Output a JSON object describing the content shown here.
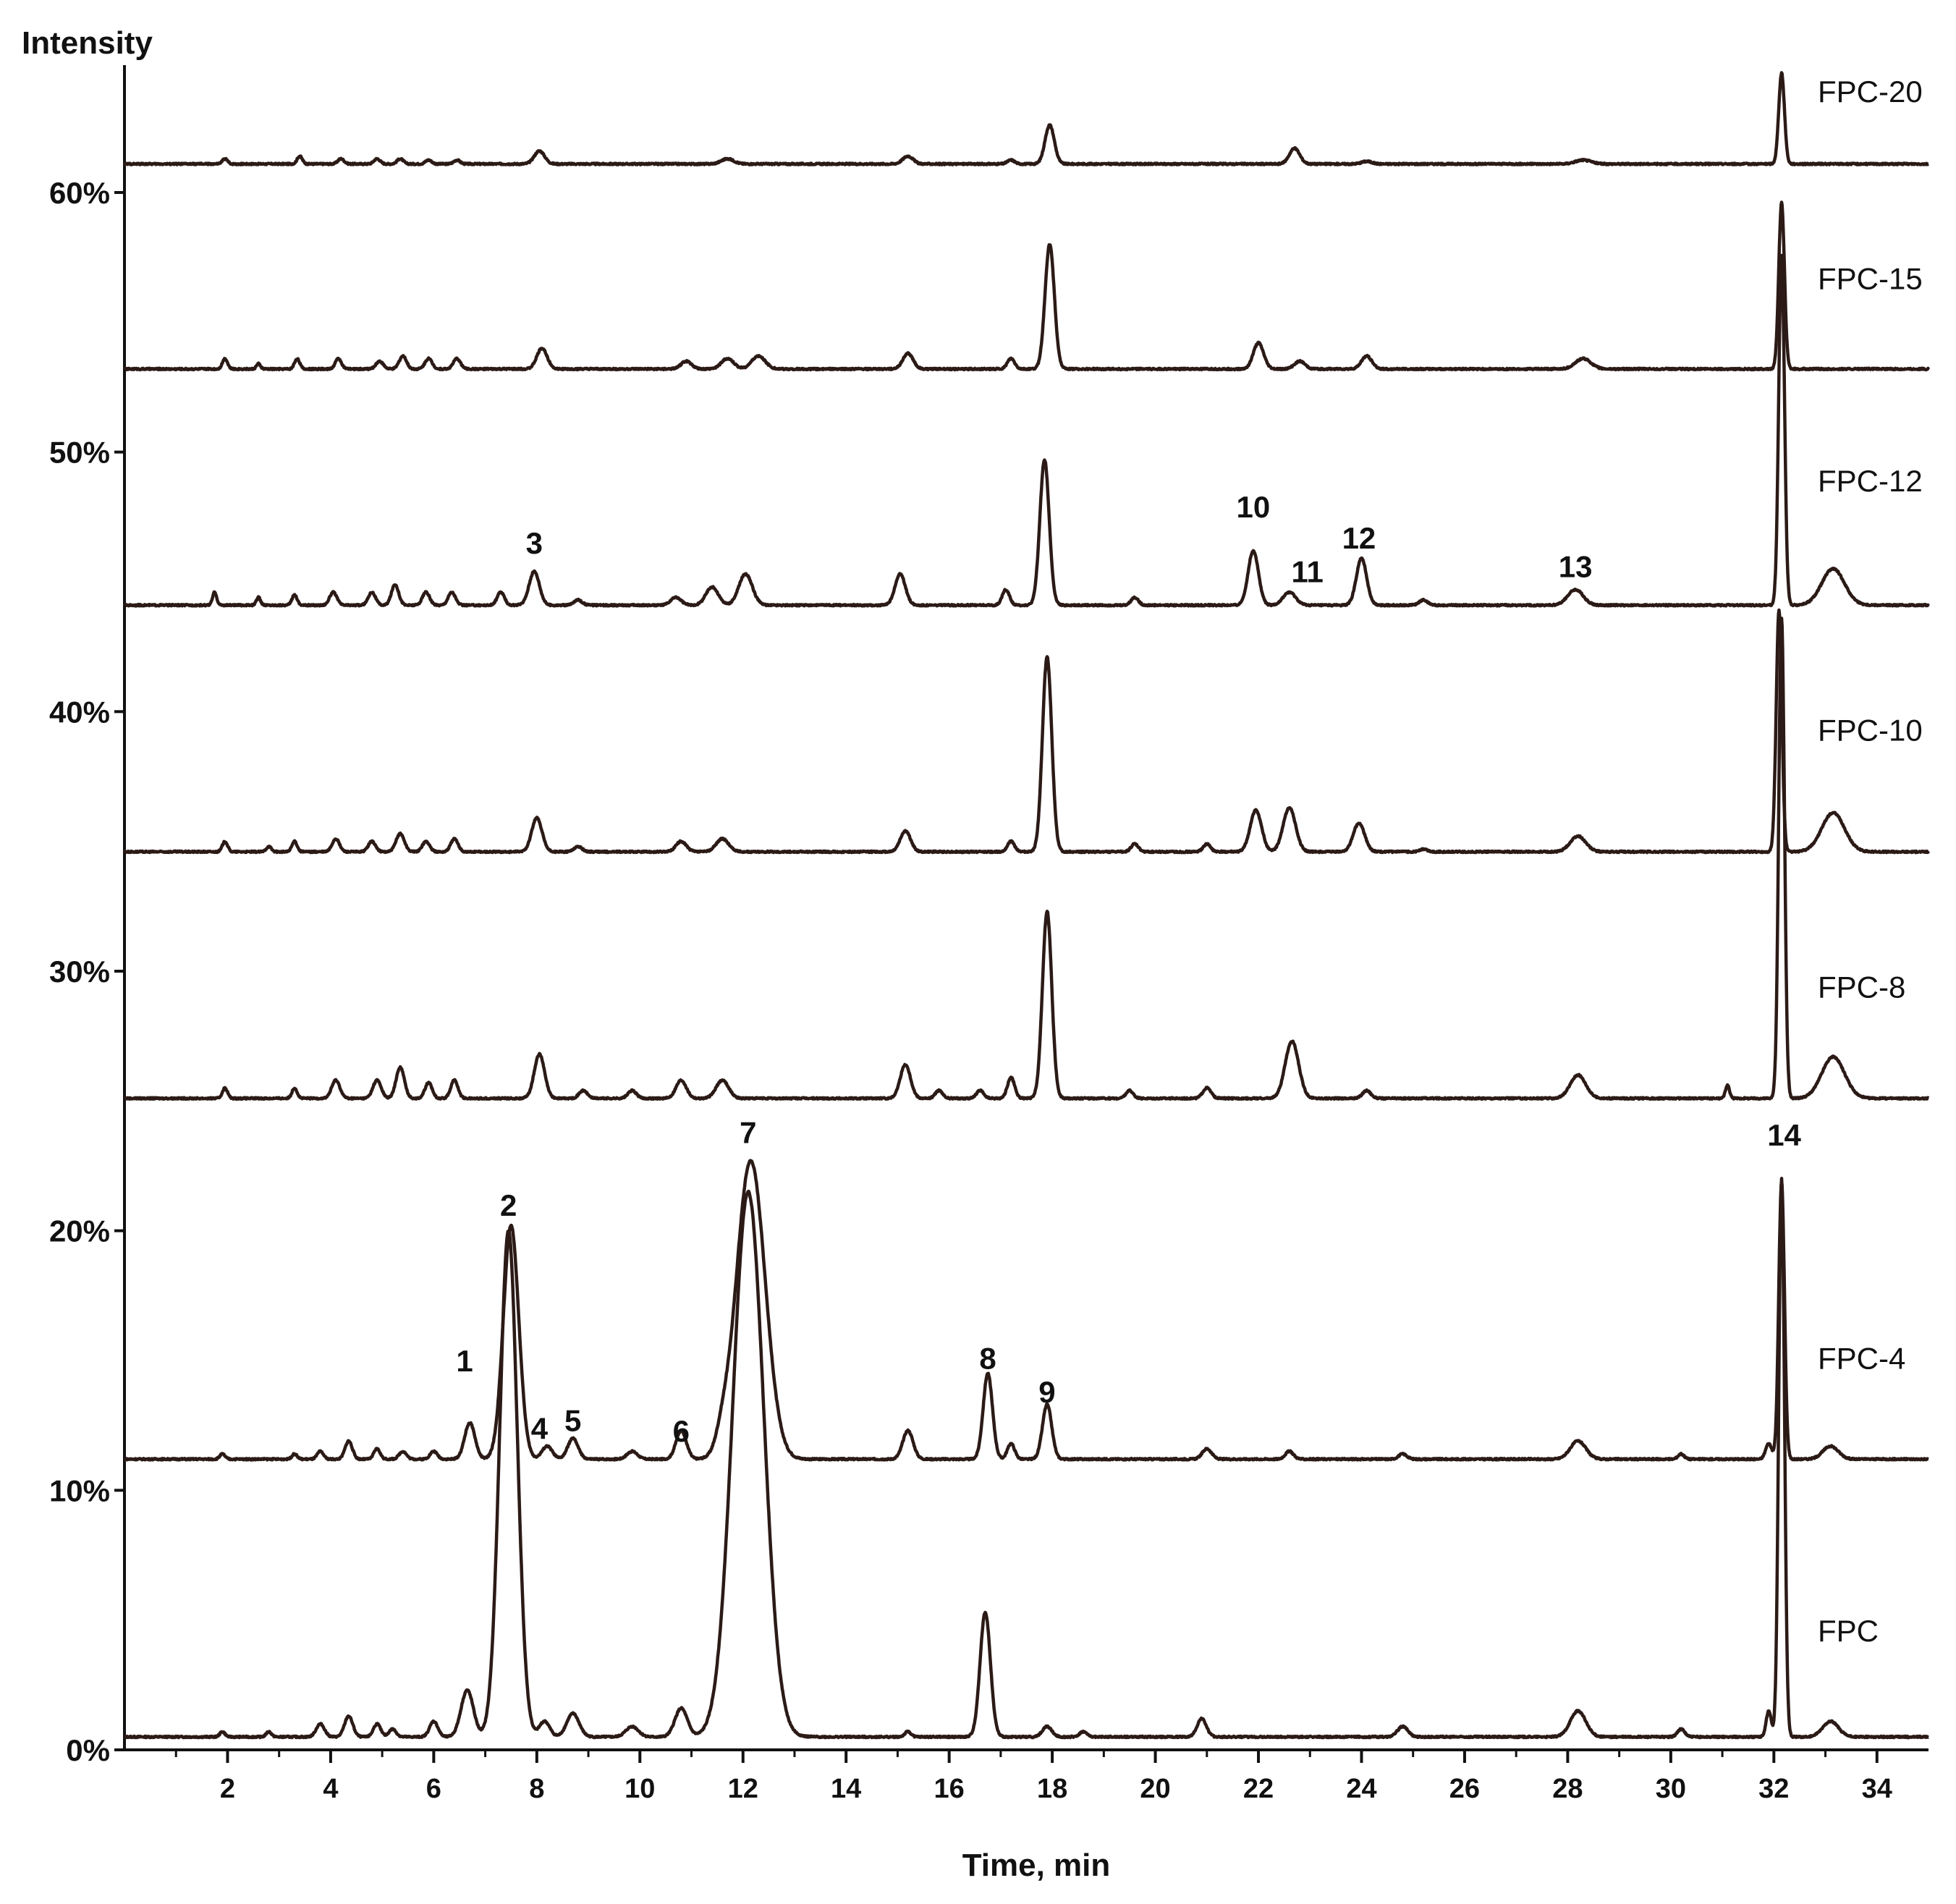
{
  "chart_data": {
    "type": "line",
    "ylabel": "Intensity",
    "xlabel": "Time, min",
    "xlim": [
      0,
      35
    ],
    "ylim": [
      0,
      65
    ],
    "x_ticks": [
      2,
      4,
      6,
      8,
      10,
      12,
      14,
      16,
      18,
      20,
      22,
      24,
      26,
      28,
      30,
      32,
      34
    ],
    "y_ticks": [
      {
        "value": 0,
        "label": "0%"
      },
      {
        "value": 10,
        "label": "10%"
      },
      {
        "value": 20,
        "label": "20%"
      },
      {
        "value": 30,
        "label": "30%"
      },
      {
        "value": 40,
        "label": "40%"
      },
      {
        "value": 50,
        "label": "50%"
      },
      {
        "value": 60,
        "label": "60%"
      }
    ],
    "grid": false,
    "series": [
      {
        "name": "FPC",
        "baseline": 0.5,
        "label_y": 4.6,
        "peaks": [
          [
            1.9,
            0.2,
            0.05
          ],
          [
            2.8,
            0.2,
            0.05
          ],
          [
            3.8,
            0.5,
            0.08
          ],
          [
            4.35,
            0.8,
            0.08
          ],
          [
            4.9,
            0.5,
            0.07
          ],
          [
            5.2,
            0.3,
            0.07
          ],
          [
            6.0,
            0.6,
            0.08
          ],
          [
            6.65,
            1.8,
            0.12
          ],
          [
            7.45,
            19.5,
            0.17
          ],
          [
            8.15,
            0.6,
            0.1
          ],
          [
            8.7,
            0.9,
            0.12
          ],
          [
            9.85,
            0.4,
            0.12
          ],
          [
            10.8,
            1.1,
            0.12
          ],
          [
            12.1,
            21.0,
            0.3
          ],
          [
            15.2,
            0.2,
            0.06
          ],
          [
            16.7,
            4.8,
            0.1
          ],
          [
            17.9,
            0.4,
            0.09
          ],
          [
            18.6,
            0.2,
            0.07
          ],
          [
            20.9,
            0.7,
            0.09
          ],
          [
            24.8,
            0.4,
            0.1
          ],
          [
            28.2,
            1.0,
            0.15
          ],
          [
            30.2,
            0.3,
            0.07
          ],
          [
            31.9,
            1.0,
            0.05
          ],
          [
            32.15,
            21.5,
            0.055
          ],
          [
            33.1,
            0.6,
            0.15
          ]
        ]
      },
      {
        "name": "FPC-4",
        "baseline": 11.2,
        "label_y": 15.1,
        "peaks": [
          [
            1.9,
            0.2,
            0.05
          ],
          [
            3.3,
            0.2,
            0.05
          ],
          [
            3.8,
            0.3,
            0.06
          ],
          [
            4.35,
            0.7,
            0.07
          ],
          [
            4.9,
            0.4,
            0.06
          ],
          [
            5.4,
            0.3,
            0.07
          ],
          [
            6.0,
            0.3,
            0.07
          ],
          [
            6.7,
            1.4,
            0.1
          ],
          [
            7.5,
            9.0,
            0.15
          ],
          [
            8.2,
            0.5,
            0.1
          ],
          [
            8.7,
            0.8,
            0.1
          ],
          [
            9.85,
            0.3,
            0.1
          ],
          [
            10.8,
            1.1,
            0.1
          ],
          [
            11.6,
            0.6,
            0.12
          ],
          [
            12.15,
            11.5,
            0.28
          ],
          [
            15.2,
            1.1,
            0.1
          ],
          [
            16.75,
            3.3,
            0.09
          ],
          [
            17.2,
            0.6,
            0.07
          ],
          [
            17.9,
            2.1,
            0.09
          ],
          [
            21.0,
            0.4,
            0.09
          ],
          [
            22.6,
            0.3,
            0.08
          ],
          [
            24.8,
            0.2,
            0.08
          ],
          [
            28.2,
            0.7,
            0.15
          ],
          [
            30.2,
            0.2,
            0.06
          ],
          [
            31.9,
            0.6,
            0.06
          ],
          [
            32.15,
            10.7,
            0.055
          ],
          [
            33.1,
            0.5,
            0.15
          ]
        ]
      },
      {
        "name": "FPC-8",
        "baseline": 25.1,
        "label_y": 29.4,
        "peaks": [
          [
            1.95,
            0.4,
            0.05
          ],
          [
            3.3,
            0.4,
            0.05
          ],
          [
            4.1,
            0.7,
            0.08
          ],
          [
            4.9,
            0.7,
            0.08
          ],
          [
            5.35,
            1.2,
            0.08
          ],
          [
            5.9,
            0.6,
            0.07
          ],
          [
            6.4,
            0.7,
            0.07
          ],
          [
            8.05,
            1.7,
            0.1
          ],
          [
            8.9,
            0.3,
            0.08
          ],
          [
            9.85,
            0.3,
            0.08
          ],
          [
            10.8,
            0.7,
            0.1
          ],
          [
            11.6,
            0.7,
            0.12
          ],
          [
            15.15,
            1.3,
            0.1
          ],
          [
            15.8,
            0.3,
            0.07
          ],
          [
            16.6,
            0.3,
            0.07
          ],
          [
            17.2,
            0.8,
            0.07
          ],
          [
            17.9,
            7.2,
            0.09
          ],
          [
            19.5,
            0.3,
            0.07
          ],
          [
            21.0,
            0.4,
            0.08
          ],
          [
            22.65,
            2.2,
            0.13
          ],
          [
            24.1,
            0.3,
            0.08
          ],
          [
            28.2,
            0.9,
            0.15
          ],
          [
            31.1,
            0.5,
            0.04
          ],
          [
            32.15,
            18.5,
            0.055
          ],
          [
            33.15,
            1.6,
            0.22
          ]
        ]
      },
      {
        "name": "FPC-10",
        "baseline": 34.6,
        "label_y": 39.3,
        "peaks": [
          [
            1.95,
            0.4,
            0.05
          ],
          [
            2.8,
            0.2,
            0.05
          ],
          [
            3.3,
            0.4,
            0.05
          ],
          [
            4.1,
            0.5,
            0.07
          ],
          [
            4.8,
            0.4,
            0.07
          ],
          [
            5.35,
            0.7,
            0.08
          ],
          [
            5.85,
            0.4,
            0.07
          ],
          [
            6.4,
            0.5,
            0.07
          ],
          [
            8.0,
            1.3,
            0.1
          ],
          [
            8.8,
            0.2,
            0.08
          ],
          [
            10.8,
            0.4,
            0.1
          ],
          [
            11.6,
            0.5,
            0.12
          ],
          [
            15.15,
            0.8,
            0.1
          ],
          [
            17.2,
            0.4,
            0.07
          ],
          [
            17.9,
            7.5,
            0.09
          ],
          [
            19.6,
            0.3,
            0.07
          ],
          [
            21.0,
            0.3,
            0.07
          ],
          [
            21.95,
            1.6,
            0.11
          ],
          [
            22.6,
            1.7,
            0.12
          ],
          [
            23.95,
            1.1,
            0.11
          ],
          [
            25.2,
            0.1,
            0.08
          ],
          [
            28.2,
            0.6,
            0.15
          ],
          [
            32.1,
            9.3,
            0.055
          ],
          [
            33.15,
            1.5,
            0.22
          ]
        ]
      },
      {
        "name": "FPC-12",
        "baseline": 44.1,
        "label_y": 48.9,
        "peaks": [
          [
            1.75,
            0.5,
            0.04
          ],
          [
            2.6,
            0.3,
            0.04
          ],
          [
            3.3,
            0.4,
            0.05
          ],
          [
            4.05,
            0.5,
            0.07
          ],
          [
            4.8,
            0.5,
            0.07
          ],
          [
            5.25,
            0.8,
            0.07
          ],
          [
            5.85,
            0.5,
            0.07
          ],
          [
            6.35,
            0.5,
            0.07
          ],
          [
            7.3,
            0.5,
            0.07
          ],
          [
            7.95,
            1.3,
            0.1
          ],
          [
            8.8,
            0.2,
            0.08
          ],
          [
            10.7,
            0.3,
            0.1
          ],
          [
            11.4,
            0.7,
            0.12
          ],
          [
            12.05,
            1.2,
            0.13
          ],
          [
            15.05,
            1.2,
            0.1
          ],
          [
            17.1,
            0.6,
            0.07
          ],
          [
            17.85,
            5.6,
            0.09
          ],
          [
            19.6,
            0.3,
            0.07
          ],
          [
            21.9,
            2.1,
            0.1
          ],
          [
            22.6,
            0.5,
            0.12
          ],
          [
            24.0,
            1.8,
            0.1
          ],
          [
            25.2,
            0.2,
            0.08
          ],
          [
            28.15,
            0.6,
            0.15
          ],
          [
            32.15,
            13.5,
            0.055
          ],
          [
            33.15,
            1.4,
            0.22
          ]
        ]
      },
      {
        "name": "FPC-15",
        "baseline": 53.2,
        "label_y": 56.7,
        "peaks": [
          [
            1.95,
            0.4,
            0.05
          ],
          [
            2.6,
            0.2,
            0.04
          ],
          [
            3.35,
            0.4,
            0.05
          ],
          [
            4.15,
            0.4,
            0.06
          ],
          [
            4.95,
            0.3,
            0.07
          ],
          [
            5.4,
            0.5,
            0.07
          ],
          [
            5.9,
            0.4,
            0.07
          ],
          [
            6.45,
            0.4,
            0.07
          ],
          [
            8.1,
            0.8,
            0.1
          ],
          [
            10.9,
            0.3,
            0.1
          ],
          [
            11.7,
            0.4,
            0.12
          ],
          [
            12.3,
            0.5,
            0.13
          ],
          [
            15.2,
            0.6,
            0.1
          ],
          [
            17.2,
            0.4,
            0.07
          ],
          [
            17.95,
            4.8,
            0.09
          ],
          [
            22.0,
            1.0,
            0.1
          ],
          [
            22.8,
            0.3,
            0.1
          ],
          [
            24.1,
            0.5,
            0.1
          ],
          [
            28.3,
            0.4,
            0.15
          ],
          [
            32.15,
            6.4,
            0.055
          ]
        ]
      },
      {
        "name": "FPC-20",
        "baseline": 61.1,
        "label_y": 63.9,
        "peaks": [
          [
            1.95,
            0.2,
            0.05
          ],
          [
            3.4,
            0.3,
            0.05
          ],
          [
            4.2,
            0.2,
            0.06
          ],
          [
            4.9,
            0.2,
            0.06
          ],
          [
            5.35,
            0.2,
            0.06
          ],
          [
            5.9,
            0.15,
            0.06
          ],
          [
            6.45,
            0.15,
            0.06
          ],
          [
            8.05,
            0.5,
            0.1
          ],
          [
            11.7,
            0.2,
            0.12
          ],
          [
            15.2,
            0.3,
            0.1
          ],
          [
            17.2,
            0.15,
            0.07
          ],
          [
            17.95,
            1.5,
            0.09
          ],
          [
            22.7,
            0.6,
            0.1
          ],
          [
            24.1,
            0.1,
            0.1
          ],
          [
            28.3,
            0.15,
            0.15
          ],
          [
            32.15,
            3.5,
            0.055
          ]
        ]
      }
    ],
    "peak_labels": [
      {
        "text": "1",
        "x": 6.6,
        "y": 15.0
      },
      {
        "text": "2",
        "x": 7.45,
        "y": 21.0
      },
      {
        "text": "3",
        "x": 7.95,
        "y": 46.5
      },
      {
        "text": "4",
        "x": 8.05,
        "y": 12.4
      },
      {
        "text": "5",
        "x": 8.7,
        "y": 12.7
      },
      {
        "text": "6",
        "x": 10.8,
        "y": 12.3
      },
      {
        "text": "7",
        "x": 12.1,
        "y": 23.8
      },
      {
        "text": "8",
        "x": 16.75,
        "y": 15.1
      },
      {
        "text": "9",
        "x": 17.9,
        "y": 13.8
      },
      {
        "text": "10",
        "x": 21.9,
        "y": 47.9
      },
      {
        "text": "11",
        "x": 22.95,
        "y": 45.4
      },
      {
        "text": "12",
        "x": 23.95,
        "y": 46.7
      },
      {
        "text": "13",
        "x": 28.15,
        "y": 45.6
      },
      {
        "text": "14",
        "x": 32.2,
        "y": 23.7
      }
    ],
    "line_color": "#2b1a16"
  }
}
